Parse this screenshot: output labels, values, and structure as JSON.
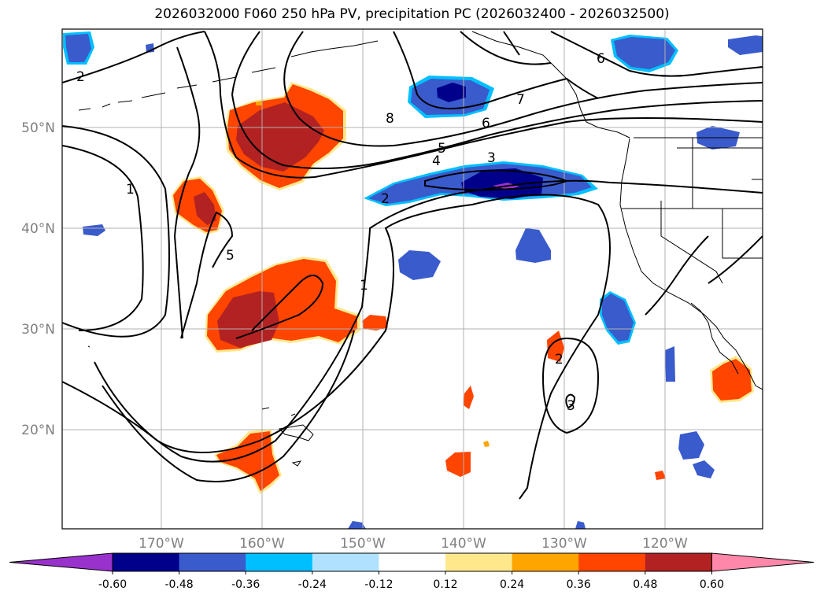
{
  "title": "2026032000 F060 250 hPa PV, precipitation PC (2026032400 - 2026032500)",
  "lat_labels": [
    "50°N",
    "40°N",
    "30°N",
    "20°N"
  ],
  "lon_labels": [
    "170°W",
    "160°W",
    "150°W",
    "140°W",
    "130°W",
    "120°W"
  ],
  "colorbar": {
    "ticks": [
      "-0.60",
      "-0.48",
      "-0.36",
      "-0.24",
      "-0.12",
      "0.12",
      "0.24",
      "0.36",
      "0.48",
      "0.60"
    ],
    "colors": [
      "#9932cc",
      "#00008b",
      "#3a5bcc",
      "#00bfff",
      "#b0e2ff",
      "#ffffff",
      "#ffe88c",
      "#ffa500",
      "#ff4500",
      "#b22222",
      "#ff88aa"
    ]
  },
  "contour_labels": [
    "2",
    "1",
    "5",
    "8",
    "7",
    "6",
    "5",
    "4",
    "3",
    "2",
    "1",
    "2",
    "3",
    "6"
  ],
  "legend_extend": "both"
}
